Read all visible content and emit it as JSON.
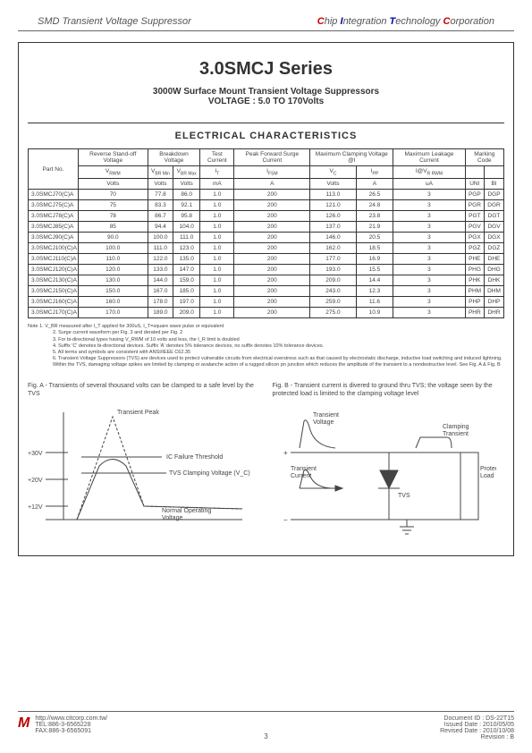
{
  "header": {
    "left": "SMD Transient Voltage Suppressor",
    "right_words": [
      "Chip",
      "Integration",
      "Technology",
      "Corporation"
    ]
  },
  "title": "3.0SMCJ Series",
  "subtitle1": "3000W Surface Mount Transient Voltage Suppressors",
  "subtitle2": "VOLTAGE : 5.0 TO 170Volts",
  "section": "ELECTRICAL CHARACTERISTICS",
  "table": {
    "group_headers": [
      "Part No.",
      "Reverse Stand-off Voltage",
      "Breakdown Voltage",
      "Test Current",
      "Peak Forward Surge Current",
      "Maximum Clamping Voltage @I",
      "Maximum Leakage Current",
      "Marking Code"
    ],
    "sym_row": [
      "V",
      "V",
      "V",
      "I",
      "I",
      "V",
      "I",
      "I@V",
      "",
      ""
    ],
    "sym_sub": [
      "RWM",
      "BR Min",
      "BR Max",
      "T",
      "FSM",
      "C",
      "PP",
      "R   RWM",
      "",
      ""
    ],
    "unit_row": [
      "Volts",
      "Volts",
      "Volts",
      "mA",
      "A",
      "Volts",
      "A",
      "uA",
      "UNI",
      "BI"
    ],
    "rows": [
      [
        "3.0SMCJ70(C)A",
        "70",
        "77.8",
        "86.0",
        "1.0",
        "200",
        "113.0",
        "26.5",
        "3",
        "PGP",
        "DGP"
      ],
      [
        "3.0SMCJ75(C)A",
        "75",
        "83.3",
        "92.1",
        "1.0",
        "200",
        "121.0",
        "24.8",
        "3",
        "PGR",
        "DGR"
      ],
      [
        "3.0SMCJ78(C)A",
        "78",
        "86.7",
        "95.8",
        "1.0",
        "200",
        "126.0",
        "23.8",
        "3",
        "PGT",
        "DGT"
      ],
      [
        "3.0SMCJ85(C)A",
        "85",
        "94.4",
        "104.0",
        "1.0",
        "200",
        "137.0",
        "21.9",
        "3",
        "PGV",
        "DGV"
      ],
      [
        "3.0SMCJ90(C)A",
        "90.0",
        "100.0",
        "111.0",
        "1.0",
        "200",
        "146.0",
        "20.5",
        "3",
        "PGX",
        "DGX"
      ],
      [
        "3.0SMCJ100(C)A",
        "100.0",
        "111.0",
        "123.0",
        "1.0",
        "200",
        "162.0",
        "18.5",
        "3",
        "PGZ",
        "DGZ"
      ],
      [
        "3.0SMCJ110(C)A",
        "110.0",
        "122.0",
        "135.0",
        "1.0",
        "200",
        "177.0",
        "16.9",
        "3",
        "PHE",
        "DHE"
      ],
      [
        "3.0SMCJ120(C)A",
        "120.0",
        "133.0",
        "147.0",
        "1.0",
        "200",
        "193.0",
        "15.5",
        "3",
        "PHG",
        "DHG"
      ],
      [
        "3.0SMCJ130(C)A",
        "130.0",
        "144.0",
        "159.0",
        "1.0",
        "200",
        "209.0",
        "14.4",
        "3",
        "PHK",
        "DHK"
      ],
      [
        "3.0SMCJ150(C)A",
        "150.0",
        "167.0",
        "185.0",
        "1.0",
        "200",
        "243.0",
        "12.3",
        "3",
        "PHM",
        "DHM"
      ],
      [
        "3.0SMCJ160(C)A",
        "160.0",
        "178.0",
        "197.0",
        "1.0",
        "200",
        "259.0",
        "11.6",
        "3",
        "PHP",
        "DHP"
      ],
      [
        "3.0SMCJ170(C)A",
        "170.0",
        "189.0",
        "209.0",
        "1.0",
        "200",
        "275.0",
        "10.9",
        "3",
        "PHR",
        "DHR"
      ]
    ]
  },
  "notes": [
    "Note 1. V_BR measured after I_T applied for 300uS, I_T=square wave pulse or equivalent",
    "2. Surge current waveform per Fig. 3 and derated per Fig. 2",
    "3. For bi-directional types having V_RWM of 10 volts and less, the I_R limit is doubled",
    "4. Suffix 'C' denotes bi-directional devices. Suffix 'A' denotes 5% tolerance devices, no suffix denotes 10% tolerance devices.",
    "5. All terms and symbols are consistent with ANSI/IEEE C62.35",
    "6. Transient Voltage Suppressors (TVS) are devices used to protect vulnerable circuits from electrical overstress such as that caused by electrostatic discharge, inductive load switching and induced lightning. Within the TVS, damaging voltage spikes are limited by clamping or avalanche action of a rugged silicon pn junction which reduces the amplitude of the transient to a nondestructive level. See Fig. A & Fig. B"
  ],
  "figA": {
    "caption": "Fig. A - Transients of several thousand volts can be clamped to a safe level by the TVS",
    "labels": {
      "peak": "Transient Peak",
      "threshold": "IC Failure Threshold",
      "clamp": "TVS Clamping Voltage (V_C)",
      "normal": "Normal Operating Voltage",
      "y30": "+30V",
      "y20": "+20V",
      "y12": "+12V"
    },
    "colors": {
      "stroke": "#444"
    }
  },
  "figB": {
    "caption": "Fig. B - Transient current is divered to ground thru TVS; the voltage seen by the protected load is limited to the clamping voltage level",
    "labels": {
      "tv": "Transient Voltage",
      "tc": "Transient Current",
      "ct": "Clamping Transient",
      "pl": "Protected Load",
      "tvs": "TVS",
      "plus": "+",
      "minus": "−"
    },
    "colors": {
      "stroke": "#444",
      "fill": "#444"
    }
  },
  "footer": {
    "url": "http://www.citcorp.com.tw/",
    "tel": "TEL:886-3-6565228",
    "fax": "FAX:886-3-6565091",
    "doc": "Document ID : DS-22T15",
    "issued": "Issued Date : 2010/05/05",
    "revised": "Revised Date : 2010/10/08",
    "rev": "Revision : B",
    "page": "3"
  }
}
